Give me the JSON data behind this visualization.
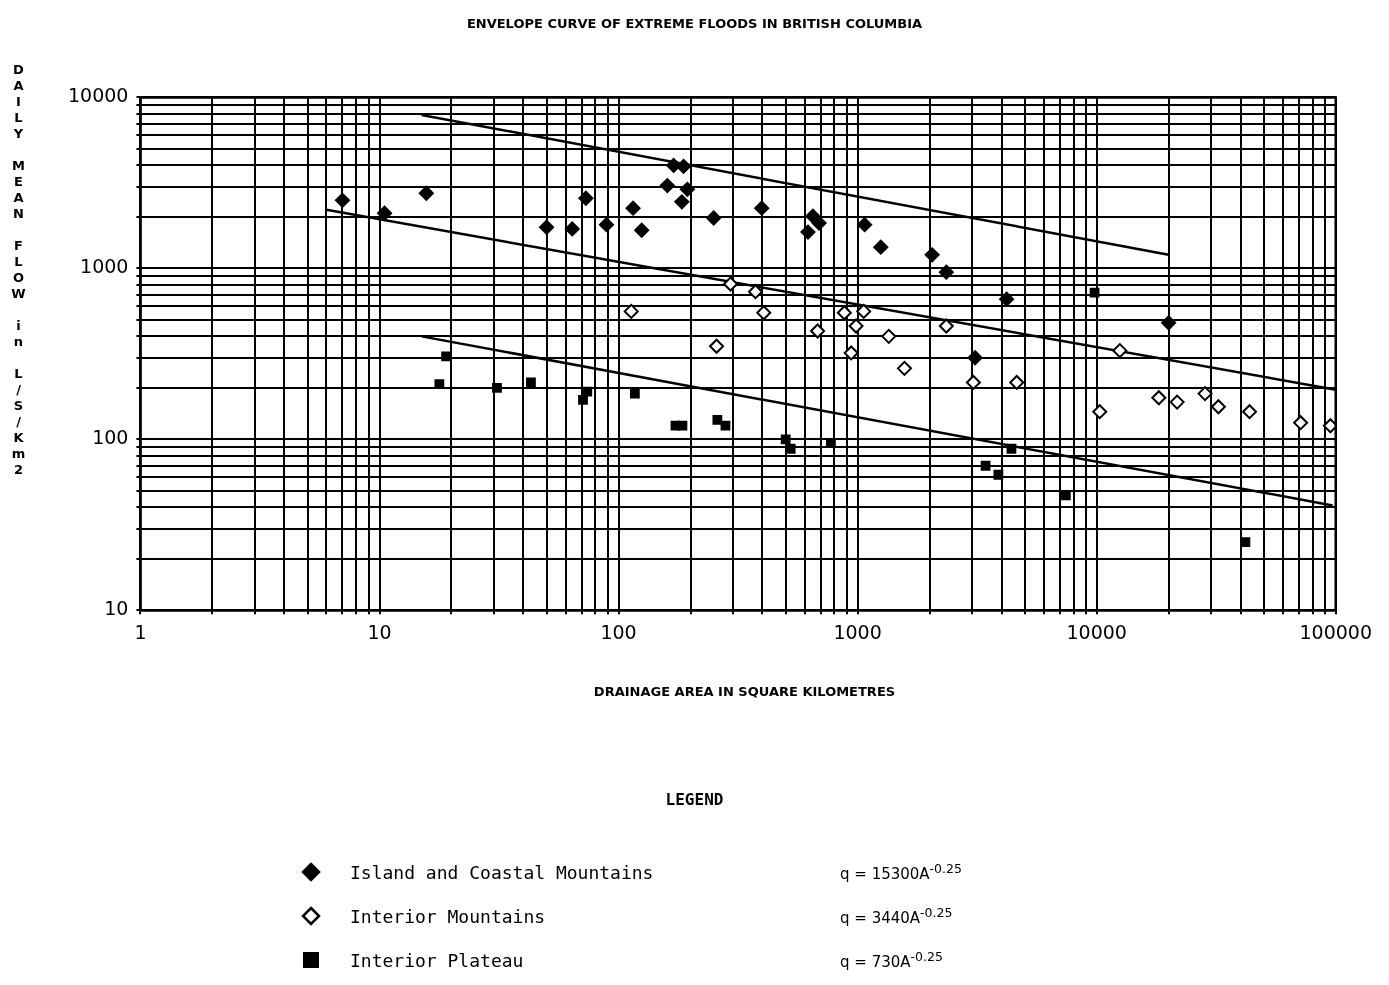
{
  "chart_data": {
    "type": "scatter",
    "title": "ENVELOPE CURVE OF EXTREME FLOODS IN BRITISH COLUMBIA",
    "xlabel": "DRAINAGE AREA IN SQUARE KILOMETRES",
    "ylabel": "DAILY MEAN FLOW in L/S/Km2",
    "legend_title": "LEGEND",
    "legend": "bottom",
    "log": "xy",
    "grid": true,
    "xlim": [
      1,
      100000
    ],
    "ylim": [
      10,
      10000
    ],
    "xticks": [
      1,
      {
        "value": 2,
        "label": null
      },
      {
        "value": 3,
        "label": null
      },
      {
        "value": 4,
        "label": null
      },
      {
        "value": 5,
        "label": null
      },
      {
        "value": 6,
        "label": null
      },
      {
        "value": 7,
        "label": null
      },
      {
        "value": 8,
        "label": null
      },
      {
        "value": 9,
        "label": null
      },
      10,
      {
        "value": 20,
        "label": null
      },
      {
        "value": 30,
        "label": null
      },
      {
        "value": 40,
        "label": null
      },
      {
        "value": 50,
        "label": null
      },
      {
        "value": 60,
        "label": null
      },
      {
        "value": 70,
        "label": null
      },
      {
        "value": 80,
        "label": null
      },
      {
        "value": 90,
        "label": null
      },
      100,
      {
        "value": 200,
        "label": null
      },
      {
        "value": 300,
        "label": null
      },
      {
        "value": 400,
        "label": null
      },
      {
        "value": 500,
        "label": null
      },
      {
        "value": 600,
        "label": null
      },
      {
        "value": 700,
        "label": null
      },
      {
        "value": 800,
        "label": null
      },
      {
        "value": 900,
        "label": null
      },
      1000,
      {
        "value": 2000,
        "label": null
      },
      {
        "value": 3000,
        "label": null
      },
      {
        "value": 4000,
        "label": null
      },
      {
        "value": 5000,
        "label": null
      },
      {
        "value": 6000,
        "label": null
      },
      {
        "value": 7000,
        "label": null
      },
      {
        "value": 8000,
        "label": null
      },
      {
        "value": 9000,
        "label": null
      },
      10000,
      {
        "value": 20000,
        "label": null
      },
      {
        "value": 30000,
        "label": null
      },
      {
        "value": 40000,
        "label": null
      },
      {
        "value": 50000,
        "label": null
      },
      {
        "value": 60000,
        "label": null
      },
      {
        "value": 70000,
        "label": null
      },
      {
        "value": 80000,
        "label": null
      },
      {
        "value": 90000,
        "label": null
      },
      100000
    ],
    "yticks": [
      10,
      {
        "value": 20,
        "label": null
      },
      {
        "value": 30,
        "label": null
      },
      {
        "value": 40,
        "label": null
      },
      {
        "value": 50,
        "label": null
      },
      {
        "value": 60,
        "label": null
      },
      {
        "value": 70,
        "label": null
      },
      {
        "value": 80,
        "label": null
      },
      {
        "value": 90,
        "label": null
      },
      100,
      {
        "value": 200,
        "label": null
      },
      {
        "value": 300,
        "label": null
      },
      {
        "value": 400,
        "label": null
      },
      {
        "value": 500,
        "label": null
      },
      {
        "value": 600,
        "label": null
      },
      {
        "value": 700,
        "label": null
      },
      {
        "value": 800,
        "label": null
      },
      {
        "value": 900,
        "label": null
      },
      1000,
      {
        "value": 2000,
        "label": null
      },
      {
        "value": 3000,
        "label": null
      },
      {
        "value": 4000,
        "label": null
      },
      {
        "value": 5000,
        "label": null
      },
      {
        "value": 6000,
        "label": null
      },
      {
        "value": 7000,
        "label": null
      },
      {
        "value": 8000,
        "label": null
      },
      {
        "value": 9000,
        "label": null
      },
      10000
    ],
    "series": [
      {
        "name": "Island and Coastal Mountains",
        "marker": "diamond",
        "color": "#000000",
        "x": [
          7,
          10.5,
          15.7,
          50,
          64,
          73,
          89,
          115,
          125,
          160,
          170,
          187,
          184,
          194,
          250,
          397,
          620,
          650,
          690,
          1070,
          1250,
          2050,
          2350,
          3100,
          4200,
          20000
        ],
        "values": [
          2500,
          2100,
          2750,
          1740,
          1700,
          2570,
          1800,
          2250,
          1670,
          3050,
          4000,
          3950,
          2450,
          2900,
          1970,
          2250,
          1630,
          2020,
          1840,
          1800,
          1330,
          1200,
          950,
          300,
          660,
          480
        ]
      },
      {
        "name": "Interior Mountains",
        "marker": "diamond",
        "color": "#ffffff",
        "x": [
          113,
          257,
          294,
          374,
          405,
          680,
          880,
          940,
          985,
          1060,
          1350,
          1570,
          2350,
          3050,
          4630,
          10300,
          12500,
          18200,
          21700,
          28400,
          32300,
          43600,
          71300,
          95000
        ],
        "values": [
          560,
          350,
          810,
          730,
          550,
          430,
          550,
          320,
          460,
          560,
          400,
          260,
          460,
          215,
          215,
          145,
          330,
          175,
          165,
          185,
          155,
          145,
          125,
          120
        ]
      },
      {
        "name": "Interior Plateau",
        "marker": "square",
        "color": "#000000",
        "x": [
          17.8,
          19,
          31,
          43,
          71,
          74,
          117,
          173,
          185,
          259,
          280,
          500,
          525,
          773,
          3430,
          3880,
          4400,
          7430,
          9800,
          41900
        ],
        "values": [
          210,
          305,
          200,
          215,
          170,
          190,
          185,
          120,
          120,
          130,
          120,
          100,
          88,
          95,
          70,
          62,
          88,
          47,
          720,
          25
        ]
      },
      {
        "type": "line",
        "marker": "none",
        "line_style": "solid",
        "color": "#000000",
        "x": [
          15,
          20000
        ],
        "values": [
          7900,
          1200
        ]
      },
      {
        "type": "line",
        "marker": "none",
        "line_style": "solid",
        "color": "#000000",
        "x": [
          6,
          100000
        ],
        "values": [
          2200,
          195
        ]
      },
      {
        "type": "line",
        "marker": "none",
        "line_style": "solid",
        "color": "#000000",
        "x": [
          15,
          97000
        ],
        "values": [
          400,
          41
        ]
      }
    ],
    "annotations": [
      "q = 15300A$^{-0.25}$",
      "q = 3440A$^{-0.25}$",
      "q = 730A$^{-0.25}$"
    ]
  }
}
